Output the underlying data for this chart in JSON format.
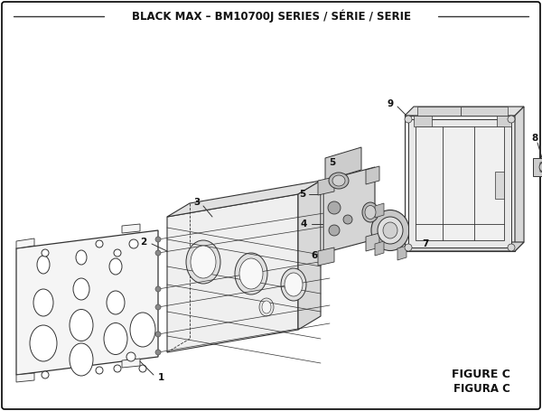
{
  "title": "BLACK MAX – BM10700J SERIES / SÉRIE / SERIE",
  "figure_label": "FIGURE C",
  "figure_label2": "FIGURA C",
  "bg_color": "#ffffff",
  "border_color": "#000000",
  "line_color": "#333333",
  "text_color": "#111111"
}
